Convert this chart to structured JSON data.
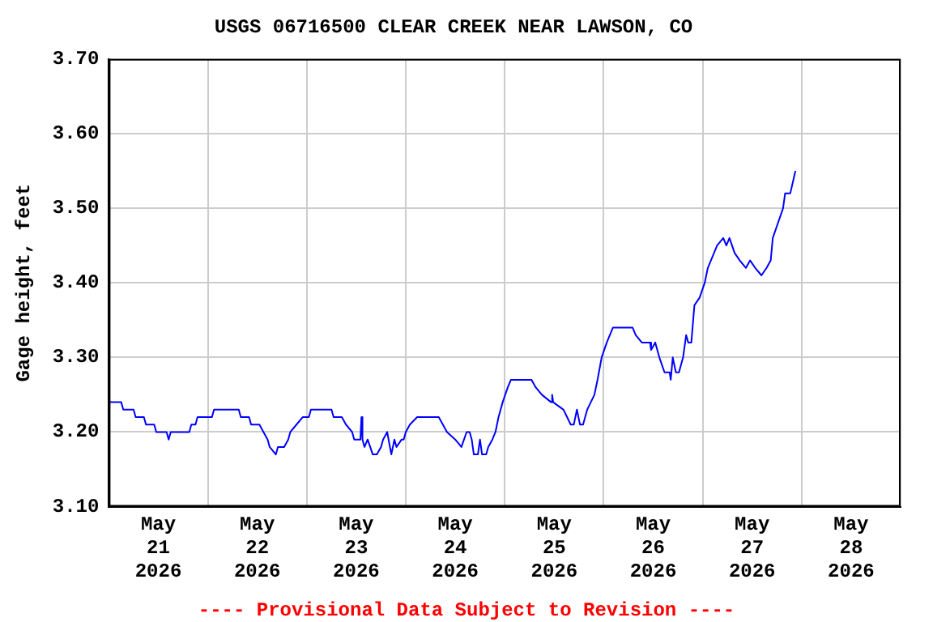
{
  "chart_data": {
    "type": "line",
    "title": "USGS 06716500 CLEAR CREEK NEAR LAWSON, CO",
    "ylabel": "Gage height, feet",
    "annotations": [
      "---- Provisional Data Subject to Revision ----"
    ],
    "series": [
      {
        "color": "#0000ff",
        "x": [
          "2026-05-21T00:00",
          "2026-05-21T03:00",
          "2026-05-21T03:30",
          "2026-05-21T06:00",
          "2026-05-21T06:30",
          "2026-05-21T08:30",
          "2026-05-21T09:00",
          "2026-05-21T11:00",
          "2026-05-21T11:30",
          "2026-05-21T14:00",
          "2026-05-21T14:30",
          "2026-05-21T15:00",
          "2026-05-21T19:30",
          "2026-05-21T20:00",
          "2026-05-21T21:00",
          "2026-05-21T21:30",
          "2026-05-22T01:00",
          "2026-05-22T01:30",
          "2026-05-22T07:30",
          "2026-05-22T08:00",
          "2026-05-22T10:00",
          "2026-05-22T10:30",
          "2026-05-22T12:30",
          "2026-05-22T13:30",
          "2026-05-22T14:30",
          "2026-05-22T15:00",
          "2026-05-22T16:30",
          "2026-05-22T17:00",
          "2026-05-22T18:30",
          "2026-05-22T19:30",
          "2026-05-22T20:00",
          "2026-05-22T21:30",
          "2026-05-22T23:00",
          "2026-05-23T00:30",
          "2026-05-23T01:00",
          "2026-05-23T06:00",
          "2026-05-23T06:30",
          "2026-05-23T08:30",
          "2026-05-23T09:30",
          "2026-05-23T11:00",
          "2026-05-23T11:30",
          "2026-05-23T13:00",
          "2026-05-23T13:15",
          "2026-05-23T13:30",
          "2026-05-23T14:00",
          "2026-05-23T14:45",
          "2026-05-23T16:00",
          "2026-05-23T17:00",
          "2026-05-23T18:00",
          "2026-05-23T18:30",
          "2026-05-23T19:30",
          "2026-05-23T20:30",
          "2026-05-23T21:15",
          "2026-05-23T21:45",
          "2026-05-23T23:00",
          "2026-05-23T23:30",
          "2026-05-24T00:00",
          "2026-05-24T01:00",
          "2026-05-24T02:45",
          "2026-05-24T08:00",
          "2026-05-24T09:00",
          "2026-05-24T10:00",
          "2026-05-24T12:00",
          "2026-05-24T13:30",
          "2026-05-24T14:45",
          "2026-05-24T15:30",
          "2026-05-24T16:00",
          "2026-05-24T16:30",
          "2026-05-24T17:30",
          "2026-05-24T18:00",
          "2026-05-24T18:30",
          "2026-05-24T19:30",
          "2026-05-24T20:00",
          "2026-05-24T21:00",
          "2026-05-24T21:45",
          "2026-05-24T22:30",
          "2026-05-24T23:30",
          "2026-05-25T00:45",
          "2026-05-25T01:30",
          "2026-05-25T02:45",
          "2026-05-25T06:30",
          "2026-05-25T07:30",
          "2026-05-25T09:00",
          "2026-05-25T11:15",
          "2026-05-25T11:30",
          "2026-05-25T11:45",
          "2026-05-25T14:15",
          "2026-05-25T16:00",
          "2026-05-25T16:45",
          "2026-05-25T17:30",
          "2026-05-25T18:15",
          "2026-05-25T19:00",
          "2026-05-25T20:00",
          "2026-05-25T21:45",
          "2026-05-25T22:30",
          "2026-05-25T23:30",
          "2026-05-26T00:45",
          "2026-05-26T02:15",
          "2026-05-26T07:00",
          "2026-05-26T07:45",
          "2026-05-26T09:15",
          "2026-05-26T11:15",
          "2026-05-26T11:30",
          "2026-05-26T12:30",
          "2026-05-26T13:30",
          "2026-05-26T14:45",
          "2026-05-26T16:00",
          "2026-05-26T16:15",
          "2026-05-26T16:45",
          "2026-05-26T17:30",
          "2026-05-26T18:15",
          "2026-05-26T19:15",
          "2026-05-26T20:00",
          "2026-05-26T20:30",
          "2026-05-26T21:15",
          "2026-05-26T22:00",
          "2026-05-26T23:15",
          "2026-05-27T00:30",
          "2026-05-27T01:15",
          "2026-05-27T02:45",
          "2026-05-27T03:30",
          "2026-05-27T05:00",
          "2026-05-27T05:45",
          "2026-05-27T06:30",
          "2026-05-27T07:45",
          "2026-05-27T09:00",
          "2026-05-27T10:30",
          "2026-05-27T11:30",
          "2026-05-27T12:45",
          "2026-05-27T14:15",
          "2026-05-27T15:30",
          "2026-05-27T16:30",
          "2026-05-27T17:00",
          "2026-05-27T18:15",
          "2026-05-27T19:30",
          "2026-05-27T20:00",
          "2026-05-27T21:15",
          "2026-05-27T22:30"
        ],
        "values": [
          3.24,
          3.24,
          3.23,
          3.23,
          3.22,
          3.22,
          3.21,
          3.21,
          3.2,
          3.2,
          3.19,
          3.2,
          3.2,
          3.21,
          3.21,
          3.22,
          3.22,
          3.23,
          3.23,
          3.22,
          3.22,
          3.21,
          3.21,
          3.2,
          3.19,
          3.18,
          3.17,
          3.18,
          3.18,
          3.19,
          3.2,
          3.21,
          3.22,
          3.22,
          3.23,
          3.23,
          3.22,
          3.22,
          3.21,
          3.2,
          3.19,
          3.19,
          3.22,
          3.19,
          3.18,
          3.19,
          3.17,
          3.17,
          3.18,
          3.19,
          3.2,
          3.17,
          3.19,
          3.18,
          3.19,
          3.19,
          3.2,
          3.21,
          3.22,
          3.22,
          3.21,
          3.2,
          3.19,
          3.18,
          3.2,
          3.2,
          3.19,
          3.17,
          3.17,
          3.19,
          3.17,
          3.17,
          3.18,
          3.19,
          3.2,
          3.22,
          3.24,
          3.26,
          3.27,
          3.27,
          3.27,
          3.26,
          3.25,
          3.24,
          3.25,
          3.24,
          3.23,
          3.21,
          3.21,
          3.23,
          3.21,
          3.21,
          3.23,
          3.25,
          3.27,
          3.3,
          3.32,
          3.34,
          3.34,
          3.33,
          3.32,
          3.32,
          3.31,
          3.32,
          3.3,
          3.28,
          3.28,
          3.27,
          3.3,
          3.28,
          3.28,
          3.3,
          3.33,
          3.32,
          3.32,
          3.37,
          3.38,
          3.4,
          3.42,
          3.44,
          3.45,
          3.46,
          3.45,
          3.46,
          3.44,
          3.43,
          3.42,
          3.43,
          3.42,
          3.41,
          3.42,
          3.43,
          3.46,
          3.48,
          3.5,
          3.52,
          3.52,
          3.55
        ]
      }
    ],
    "xlim": [
      "2026-05-21T00:00",
      "2026-05-29T00:00"
    ],
    "xticks": [
      {
        "value": "2026-05-21T00:00",
        "label": null
      },
      {
        "value": "2026-05-21T12:00",
        "label": "May\n21\n2026"
      },
      {
        "value": "2026-05-22T00:00",
        "label": null
      },
      {
        "value": "2026-05-22T12:00",
        "label": "May\n22\n2026"
      },
      {
        "value": "2026-05-23T00:00",
        "label": null
      },
      {
        "value": "2026-05-23T12:00",
        "label": "May\n23\n2026"
      },
      {
        "value": "2026-05-24T00:00",
        "label": null
      },
      {
        "value": "2026-05-24T12:00",
        "label": "May\n24\n2026"
      },
      {
        "value": "2026-05-25T00:00",
        "label": null
      },
      {
        "value": "2026-05-25T12:00",
        "label": "May\n25\n2026"
      },
      {
        "value": "2026-05-26T00:00",
        "label": null
      },
      {
        "value": "2026-05-26T12:00",
        "label": "May\n26\n2026"
      },
      {
        "value": "2026-05-27T00:00",
        "label": null
      },
      {
        "value": "2026-05-27T12:00",
        "label": "May\n27\n2026"
      },
      {
        "value": "2026-05-28T00:00",
        "label": null
      },
      {
        "value": "2026-05-28T12:00",
        "label": "May\n28\n2026"
      },
      {
        "value": "2026-05-29T00:00",
        "label": null
      }
    ],
    "ylim": [
      3.1,
      3.7
    ],
    "yticks": [
      {
        "value": 3.1,
        "label": "3.10"
      },
      {
        "value": 3.2,
        "label": "3.20"
      },
      {
        "value": 3.3,
        "label": "3.30"
      },
      {
        "value": 3.4,
        "label": "3.40"
      },
      {
        "value": 3.5,
        "label": "3.50"
      },
      {
        "value": 3.6,
        "label": "3.60"
      },
      {
        "value": 3.7,
        "label": "3.70"
      }
    ],
    "grid": true,
    "line_style": "solid",
    "marker": "none"
  }
}
